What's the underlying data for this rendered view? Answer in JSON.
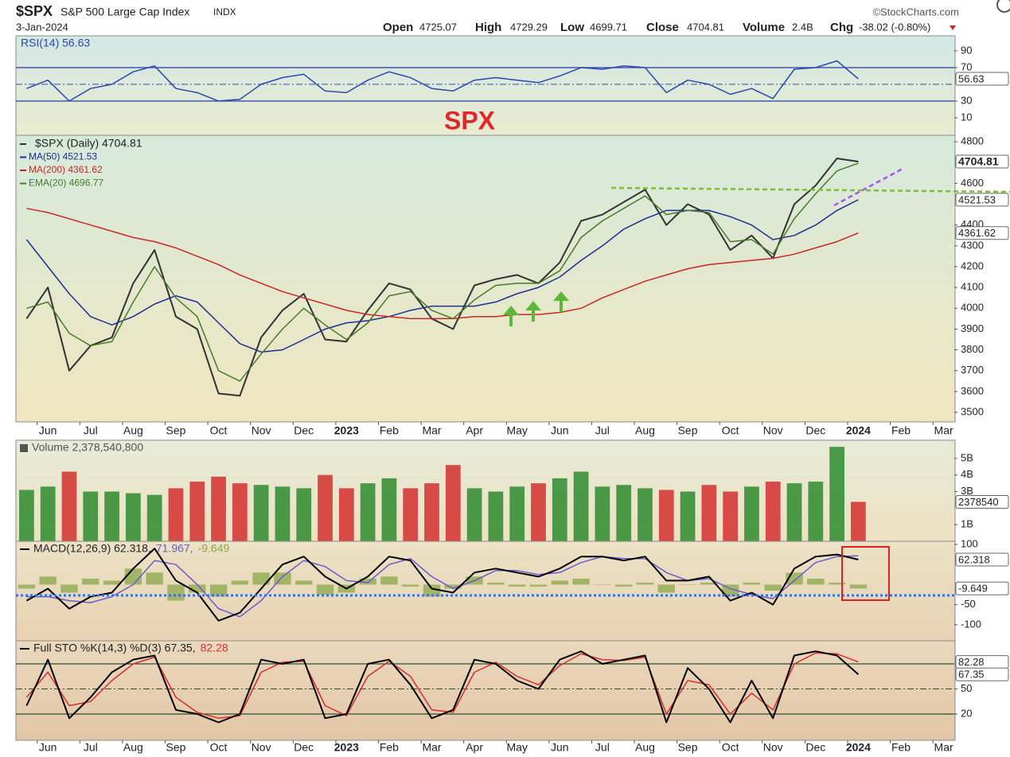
{
  "header": {
    "symbol": "$SPX",
    "name": "S&P 500 Large Cap Index",
    "exchange": "INDX",
    "date": "3-Jan-2024",
    "open_label": "Open",
    "open": "4725.07",
    "high_label": "High",
    "high": "4729.29",
    "low_label": "Low",
    "low": "4699.71",
    "close_label": "Close",
    "close": "4704.81",
    "volume_label": "Volume",
    "volume": "2.4B",
    "chg_label": "Chg",
    "chg": "-38.02 (-0.80%)",
    "credit": "©StockCharts.com"
  },
  "annotation": "SPX",
  "chart_data": [
    {
      "type": "line",
      "ylim": [
        -11,
        108
      ],
      "yticks": [
        90,
        70,
        30,
        10
      ],
      "levels": [
        70,
        50,
        30
      ],
      "level_color": "#3a4aa8",
      "badges": [
        56.63
      ],
      "series": [
        {
          "name": "RSI(14) 56.63",
          "color": "#2a48b0",
          "values": [
            45,
            55,
            30,
            45,
            50,
            65,
            72,
            45,
            40,
            30,
            32,
            50,
            58,
            62,
            42,
            40,
            55,
            65,
            58,
            45,
            42,
            55,
            58,
            55,
            52,
            60,
            70,
            68,
            72,
            70,
            40,
            55,
            50,
            38,
            45,
            33,
            68,
            70,
            78,
            56.63,
            null,
            null,
            null,
            null
          ]
        }
      ]
    },
    {
      "type": "line",
      "ylim": [
        3454,
        4831
      ],
      "yticks": [
        4800,
        4600,
        4400,
        4300,
        4200,
        4100,
        4000,
        3900,
        3800,
        3700,
        3600,
        3500
      ],
      "badges": [
        4704.81,
        4521.53,
        4361.62
      ],
      "up_color": "#2e8b2e",
      "down_color": "#d32f2f",
      "categories": [
        null,
        "Jun",
        null,
        "Jul",
        null,
        "Aug",
        null,
        "Sep",
        null,
        "Oct",
        null,
        "Nov",
        null,
        "Dec",
        null,
        "2023",
        null,
        "Feb",
        null,
        "Mar",
        null,
        "Apr",
        null,
        "May",
        null,
        "Jun",
        null,
        "Jul",
        null,
        "Aug",
        null,
        "Sep",
        null,
        "Oct",
        null,
        "Nov",
        null,
        "Dec",
        null,
        "2024",
        null,
        "Feb",
        null,
        "Mar"
      ],
      "series": [
        {
          "name": "$SPX (Daily) 4704.81",
          "color": "#333333",
          "values": [
            3950,
            4100,
            3700,
            3820,
            3860,
            4120,
            4280,
            3960,
            3900,
            3590,
            3580,
            3860,
            3990,
            4070,
            3850,
            3840,
            3990,
            4120,
            4090,
            3950,
            3900,
            4110,
            4140,
            4160,
            4120,
            4220,
            4420,
            4450,
            4510,
            4570,
            4400,
            4500,
            4450,
            4280,
            4350,
            4240,
            4500,
            4590,
            4720,
            4704.81,
            null,
            null,
            null,
            null
          ]
        },
        {
          "name": "MA(50) 4521.53",
          "color": "#1f2f8f",
          "values": [
            4330,
            4200,
            4070,
            3960,
            3920,
            3960,
            4020,
            4060,
            4030,
            3930,
            3830,
            3790,
            3800,
            3850,
            3900,
            3930,
            3940,
            3960,
            3990,
            4010,
            4010,
            4010,
            4030,
            4070,
            4100,
            4150,
            4230,
            4300,
            4380,
            4430,
            4470,
            4470,
            4470,
            4440,
            4400,
            4330,
            4350,
            4400,
            4470,
            4521.53,
            null,
            null,
            null,
            null
          ]
        },
        {
          "name": "MA(200) 4361.62",
          "color": "#c62828",
          "values": [
            4480,
            4460,
            4430,
            4400,
            4370,
            4340,
            4320,
            4290,
            4250,
            4210,
            4160,
            4120,
            4080,
            4050,
            4020,
            3990,
            3970,
            3960,
            3950,
            3950,
            3950,
            3960,
            3960,
            3970,
            3970,
            3980,
            4000,
            4050,
            4090,
            4130,
            4160,
            4190,
            4210,
            4220,
            4230,
            4240,
            4260,
            4290,
            4320,
            4361.62,
            null,
            null,
            null,
            null
          ]
        },
        {
          "name": "EMA(20) 4696.77",
          "color": "#4a7a2a",
          "values": [
            4000,
            4030,
            3880,
            3820,
            3840,
            4030,
            4200,
            4050,
            3960,
            3700,
            3650,
            3780,
            3900,
            4000,
            3920,
            3850,
            3930,
            4060,
            4080,
            3990,
            3950,
            4040,
            4110,
            4120,
            4120,
            4180,
            4340,
            4420,
            4480,
            4540,
            4450,
            4470,
            4460,
            4320,
            4330,
            4260,
            4430,
            4550,
            4660,
            4696.77,
            null,
            null,
            null,
            null
          ]
        }
      ]
    },
    {
      "type": "bar",
      "ylim": [
        0,
        6.1
      ],
      "yticks": [
        {
          "value": 5,
          "label": "5B"
        },
        {
          "value": 4,
          "label": "4B"
        },
        {
          "value": 3,
          "label": "3B"
        },
        {
          "value": 1,
          "label": "1B"
        }
      ],
      "badges": [
        {
          "value": 2.37854,
          "label": "2378540"
        }
      ],
      "series": [
        {
          "name": "Volume 2,378,540,800",
          "color": "#555555",
          "values": [
            3.1,
            3.3,
            4.2,
            3.0,
            3.0,
            2.9,
            2.8,
            3.2,
            3.6,
            3.9,
            3.5,
            3.4,
            3.3,
            3.2,
            4.0,
            3.2,
            3.5,
            3.8,
            3.2,
            3.5,
            4.6,
            3.2,
            3.0,
            3.3,
            3.5,
            3.8,
            4.2,
            3.3,
            3.4,
            3.2,
            3.1,
            3.0,
            3.4,
            3.0,
            3.3,
            3.6,
            3.5,
            3.6,
            5.7,
            2.38,
            null,
            null,
            null,
            null
          ]
        }
      ]
    },
    {
      "type": "line",
      "ylim": [
        -140,
        108
      ],
      "yticks": [
        100,
        -50,
        -100
      ],
      "badges": [
        62.318,
        -9.649
      ],
      "series": [
        {
          "name": "-9.649",
          "type": "bar",
          "color": "#8aa84a",
          "values": [
            -10,
            20,
            -20,
            15,
            10,
            40,
            30,
            -40,
            -20,
            -30,
            10,
            30,
            30,
            10,
            -25,
            -20,
            15,
            20,
            -5,
            -30,
            -10,
            20,
            5,
            -5,
            -5,
            10,
            15,
            0,
            -5,
            5,
            -20,
            0,
            5,
            -30,
            5,
            -15,
            30,
            15,
            5,
            -9.649,
            null,
            null,
            null,
            null
          ]
        },
        {
          "name": "71.967,",
          "color": "#6a5acd",
          "values": [
            -30,
            -30,
            -40,
            -45,
            -30,
            0,
            60,
            50,
            0,
            -60,
            -80,
            -40,
            20,
            60,
            45,
            10,
            5,
            50,
            65,
            20,
            -10,
            10,
            35,
            35,
            25,
            30,
            55,
            70,
            65,
            65,
            30,
            10,
            15,
            -10,
            -25,
            -35,
            10,
            55,
            70,
            71.967,
            null,
            null,
            null,
            null
          ]
        },
        {
          "name": "MACD(12,26,9) 62.318,",
          "color": "#000000",
          "values": [
            -40,
            -10,
            -60,
            -30,
            -20,
            40,
            90,
            10,
            -20,
            -90,
            -70,
            -10,
            50,
            70,
            20,
            -10,
            20,
            70,
            60,
            -10,
            -20,
            30,
            40,
            30,
            20,
            40,
            70,
            70,
            60,
            70,
            10,
            10,
            20,
            -40,
            -20,
            -50,
            40,
            70,
            75,
            62.318,
            null,
            null,
            null,
            null
          ]
        }
      ]
    },
    {
      "type": "line",
      "ylim": [
        -11.4,
        107.6
      ],
      "yticks": [
        50,
        20
      ],
      "levels": [
        80,
        50,
        20
      ],
      "level_color": "#2f4f2f",
      "badges": [
        82.28,
        67.35
      ],
      "categories": [
        null,
        "Jun",
        null,
        "Jul",
        null,
        "Aug",
        null,
        "Sep",
        null,
        "Oct",
        null,
        "Nov",
        null,
        "Dec",
        null,
        "2023",
        null,
        "Feb",
        null,
        "Mar",
        null,
        "Apr",
        null,
        "May",
        null,
        "Jun",
        null,
        "Jul",
        null,
        "Aug",
        null,
        "Sep",
        null,
        "Oct",
        null,
        "Nov",
        null,
        "Dec",
        null,
        "2024",
        null,
        "Feb",
        null,
        "Mar"
      ],
      "series": [
        {
          "name": "82.28",
          "color": "#d32f2f",
          "values": [
            40,
            70,
            30,
            35,
            60,
            80,
            88,
            40,
            22,
            15,
            18,
            70,
            82,
            83,
            30,
            18,
            65,
            83,
            65,
            25,
            22,
            70,
            82,
            65,
            55,
            78,
            92,
            85,
            84,
            88,
            20,
            60,
            55,
            20,
            45,
            25,
            80,
            93,
            92,
            82.28,
            null,
            null,
            null,
            null
          ]
        },
        {
          "name": "Full STO %K(14,3) %D(3) 67.35,",
          "color": "#000000",
          "values": [
            30,
            85,
            15,
            40,
            70,
            85,
            90,
            25,
            20,
            10,
            20,
            85,
            80,
            85,
            15,
            20,
            80,
            85,
            55,
            15,
            25,
            85,
            80,
            60,
            50,
            85,
            95,
            80,
            85,
            90,
            10,
            75,
            50,
            10,
            60,
            15,
            90,
            95,
            90,
            67.35,
            null,
            null,
            null,
            null
          ]
        }
      ]
    }
  ]
}
